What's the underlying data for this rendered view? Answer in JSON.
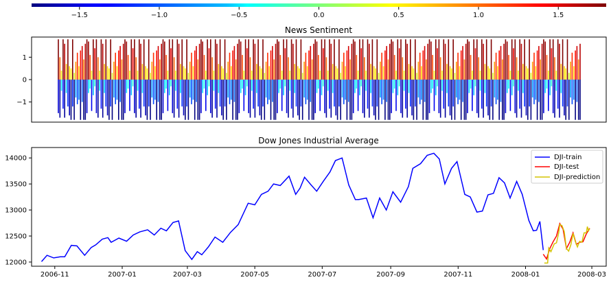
{
  "colorbar": {
    "ticks": [
      -1.5,
      -1.0,
      -0.5,
      0.0,
      0.5,
      1.0,
      1.5
    ],
    "tick_labels": [
      "−1.5",
      "−1.0",
      "−0.5",
      "0.0",
      "0.5",
      "1.0",
      "1.5"
    ],
    "range": [
      -1.8,
      1.8
    ],
    "colormap": "jet"
  },
  "chart_data": [
    {
      "type": "bar",
      "title": "News Sentiment",
      "ylim": [
        -1.9,
        1.9
      ],
      "yticks": [
        1,
        0,
        -1
      ],
      "ytick_labels": [
        "1",
        "0",
        "−1"
      ],
      "x_index_range": [
        0,
        330
      ],
      "pos_pattern": [
        1.8,
        0.6,
        1.3,
        0.4,
        1.6,
        0.8,
        1.8,
        1.0,
        0.5,
        1.5,
        1.8,
        0.7,
        1.2,
        1.7,
        0.4,
        1.8,
        0.9,
        1.4,
        1.8,
        0.6,
        1.1,
        1.8,
        0.3,
        1.6
      ],
      "neg_pattern": [
        -1.5,
        -0.6,
        -1.8,
        -1.0,
        -0.4,
        -1.7,
        -1.2,
        -0.8,
        -1.8,
        -1.4,
        -0.5,
        -1.6,
        -1.1,
        -1.8,
        -0.7,
        -1.3,
        -1.8,
        -0.9,
        -1.5,
        -0.3,
        -1.7,
        -1.2,
        -1.8,
        -0.6
      ]
    },
    {
      "type": "line",
      "title": "Dow Jones Industrial Average",
      "ylim": [
        11920,
        14200
      ],
      "yticks": [
        12000,
        12500,
        13000,
        13500,
        14000
      ],
      "ytick_labels": [
        "12000",
        "12500",
        "13000",
        "13500",
        "14000"
      ],
      "xticks": [
        "2006-11",
        "2007-01",
        "2007-03",
        "2007-05",
        "2007-07",
        "2007-09",
        "2007-11",
        "2008-01",
        "2008-03"
      ],
      "xtick_dates": [
        "2006-11-01",
        "2007-01-01",
        "2007-03-01",
        "2007-05-01",
        "2007-07-01",
        "2007-09-01",
        "2007-11-01",
        "2008-01-01",
        "2008-03-01"
      ],
      "xlim": [
        "2006-10-11",
        "2008-03-14"
      ],
      "legend_position": "top-right",
      "series": [
        {
          "name": "DJI-train",
          "color": "#0000ff",
          "points": [
            [
              "2006-10-20",
              12010
            ],
            [
              "2006-10-25",
              12130
            ],
            [
              "2006-10-31",
              12080
            ],
            [
              "2006-11-06",
              12100
            ],
            [
              "2006-11-10",
              12100
            ],
            [
              "2006-11-16",
              12320
            ],
            [
              "2006-11-21",
              12310
            ],
            [
              "2006-11-28",
              12130
            ],
            [
              "2006-12-04",
              12280
            ],
            [
              "2006-12-08",
              12330
            ],
            [
              "2006-12-14",
              12440
            ],
            [
              "2006-12-19",
              12470
            ],
            [
              "2006-12-22",
              12380
            ],
            [
              "2006-12-29",
              12460
            ],
            [
              "2007-01-05",
              12400
            ],
            [
              "2007-01-11",
              12520
            ],
            [
              "2007-01-17",
              12580
            ],
            [
              "2007-01-24",
              12620
            ],
            [
              "2007-01-30",
              12520
            ],
            [
              "2007-02-05",
              12650
            ],
            [
              "2007-02-10",
              12600
            ],
            [
              "2007-02-16",
              12760
            ],
            [
              "2007-02-21",
              12790
            ],
            [
              "2007-02-27",
              12220
            ],
            [
              "2007-03-05",
              12050
            ],
            [
              "2007-03-10",
              12200
            ],
            [
              "2007-03-14",
              12140
            ],
            [
              "2007-03-20",
              12290
            ],
            [
              "2007-03-26",
              12480
            ],
            [
              "2007-04-02",
              12380
            ],
            [
              "2007-04-09",
              12570
            ],
            [
              "2007-04-16",
              12720
            ],
            [
              "2007-04-20",
              12900
            ],
            [
              "2007-04-25",
              13130
            ],
            [
              "2007-05-01",
              13100
            ],
            [
              "2007-05-07",
              13300
            ],
            [
              "2007-05-13",
              13360
            ],
            [
              "2007-05-18",
              13500
            ],
            [
              "2007-05-24",
              13470
            ],
            [
              "2007-06-01",
              13650
            ],
            [
              "2007-06-07",
              13300
            ],
            [
              "2007-06-11",
              13420
            ],
            [
              "2007-06-15",
              13630
            ],
            [
              "2007-06-21",
              13480
            ],
            [
              "2007-06-26",
              13360
            ],
            [
              "2007-07-02",
              13550
            ],
            [
              "2007-07-08",
              13730
            ],
            [
              "2007-07-13",
              13950
            ],
            [
              "2007-07-19",
              14000
            ],
            [
              "2007-07-25",
              13480
            ],
            [
              "2007-07-31",
              13200
            ],
            [
              "2007-08-03",
              13200
            ],
            [
              "2007-08-10",
              13230
            ],
            [
              "2007-08-16",
              12850
            ],
            [
              "2007-08-22",
              13230
            ],
            [
              "2007-08-28",
              13000
            ],
            [
              "2007-09-03",
              13350
            ],
            [
              "2007-09-10",
              13150
            ],
            [
              "2007-09-17",
              13450
            ],
            [
              "2007-09-21",
              13800
            ],
            [
              "2007-09-28",
              13890
            ],
            [
              "2007-10-04",
              14050
            ],
            [
              "2007-10-10",
              14090
            ],
            [
              "2007-10-15",
              13980
            ],
            [
              "2007-10-20",
              13500
            ],
            [
              "2007-10-26",
              13800
            ],
            [
              "2007-10-31",
              13930
            ],
            [
              "2007-11-07",
              13300
            ],
            [
              "2007-11-12",
              13250
            ],
            [
              "2007-11-18",
              12960
            ],
            [
              "2007-11-23",
              12980
            ],
            [
              "2007-11-28",
              13290
            ],
            [
              "2007-12-03",
              13320
            ],
            [
              "2007-12-08",
              13620
            ],
            [
              "2007-12-13",
              13520
            ],
            [
              "2007-12-18",
              13230
            ],
            [
              "2007-12-24",
              13550
            ],
            [
              "2007-12-29",
              13300
            ],
            [
              "2008-01-04",
              12800
            ],
            [
              "2008-01-08",
              12600
            ],
            [
              "2008-01-11",
              12610
            ],
            [
              "2008-01-14",
              12780
            ],
            [
              "2008-01-17",
              12230
            ]
          ]
        },
        {
          "name": "DJI-test",
          "color": "#ff0000",
          "points": [
            [
              "2008-01-17",
              12150
            ],
            [
              "2008-01-20",
              12060
            ],
            [
              "2008-01-23",
              12260
            ],
            [
              "2008-01-26",
              12390
            ],
            [
              "2008-01-29",
              12500
            ],
            [
              "2008-02-01",
              12740
            ],
            [
              "2008-02-04",
              12630
            ],
            [
              "2008-02-07",
              12260
            ],
            [
              "2008-02-10",
              12380
            ],
            [
              "2008-02-13",
              12560
            ],
            [
              "2008-02-16",
              12340
            ],
            [
              "2008-02-19",
              12380
            ],
            [
              "2008-02-22",
              12390
            ],
            [
              "2008-02-25",
              12540
            ],
            [
              "2008-02-28",
              12650
            ]
          ]
        },
        {
          "name": "DJI-prediction",
          "color": "#d4c400",
          "points": [
            [
              "2008-01-18",
              11980
            ],
            [
              "2008-01-21",
              11980
            ],
            [
              "2008-01-22",
              12270
            ],
            [
              "2008-01-24",
              12200
            ],
            [
              "2008-01-27",
              12350
            ],
            [
              "2008-01-29",
              12370
            ],
            [
              "2008-01-31",
              12560
            ],
            [
              "2008-02-01",
              12720
            ],
            [
              "2008-02-03",
              12700
            ],
            [
              "2008-02-05",
              12590
            ],
            [
              "2008-02-07",
              12260
            ],
            [
              "2008-02-09",
              12210
            ],
            [
              "2008-02-11",
              12330
            ],
            [
              "2008-02-13",
              12550
            ],
            [
              "2008-02-15",
              12400
            ],
            [
              "2008-02-17",
              12290
            ],
            [
              "2008-02-19",
              12400
            ],
            [
              "2008-02-21",
              12380
            ],
            [
              "2008-02-23",
              12560
            ],
            [
              "2008-02-25",
              12560
            ],
            [
              "2008-02-26",
              12680
            ],
            [
              "2008-02-27",
              12600
            ],
            [
              "2008-02-28",
              12640
            ]
          ]
        }
      ]
    }
  ]
}
